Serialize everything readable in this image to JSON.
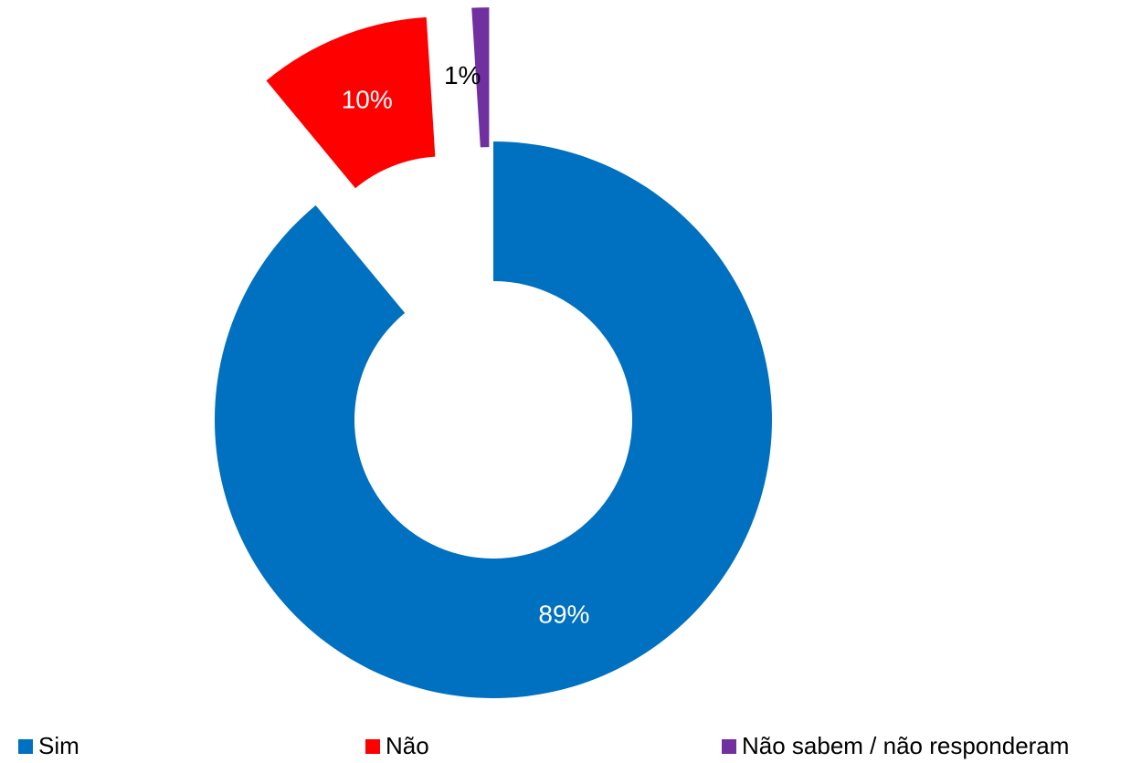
{
  "chart_data": {
    "type": "donut",
    "categories": [
      "Sim",
      "Não",
      "Não sabem / não responderam"
    ],
    "values": [
      89,
      10,
      1
    ],
    "value_labels": [
      "89%",
      "10%",
      "1%"
    ],
    "colors": [
      "#0070c0",
      "#ff0000",
      "#7030a0"
    ],
    "legend": "bottom"
  }
}
